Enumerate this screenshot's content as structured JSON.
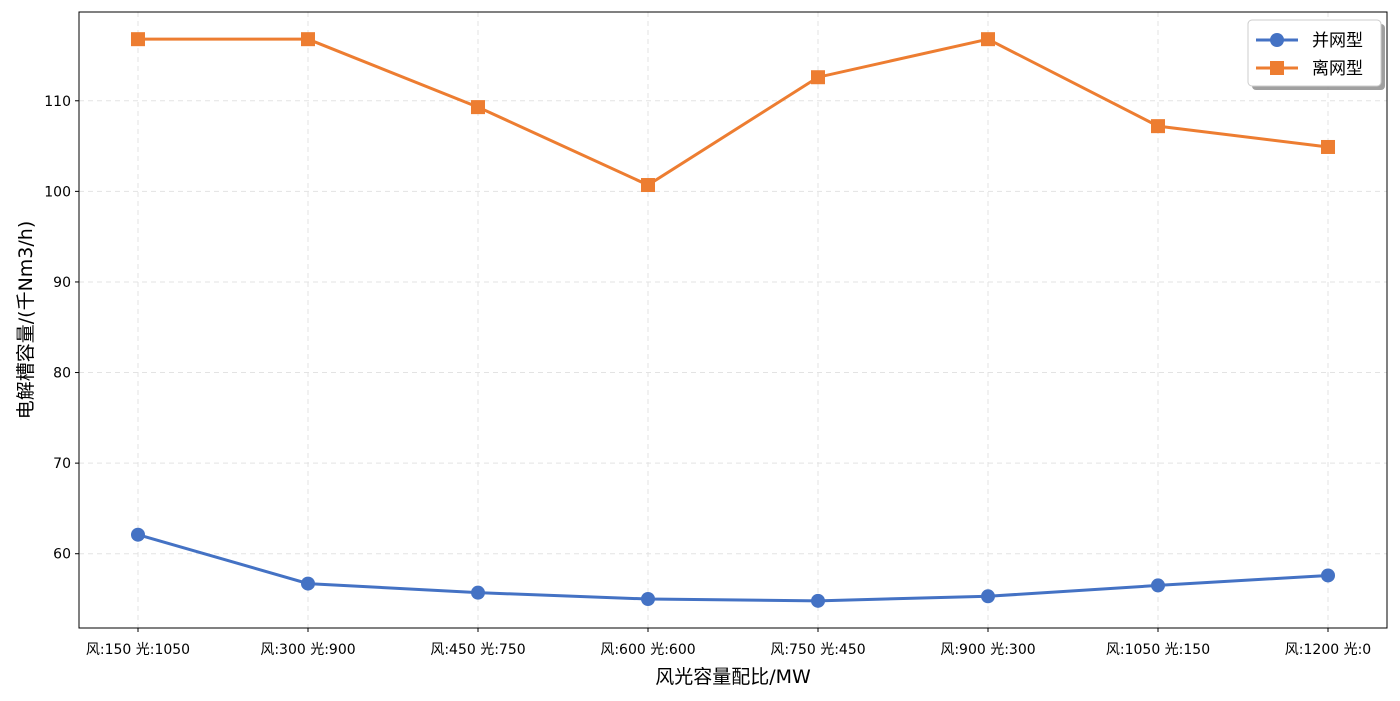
{
  "chart_data": {
    "type": "line",
    "title": "",
    "xlabel": "风光容量配比/MW",
    "ylabel": "电解槽容量/(千Nm3/h)",
    "categories": [
      "风:150 光:1050",
      "风:300 光:900",
      "风:450 光:750",
      "风:600 光:600",
      "风:750 光:450",
      "风:900 光:300",
      "风:1050 光:150",
      "风:1200 光:0"
    ],
    "series": [
      {
        "name": "并网型",
        "color": "#4472C4",
        "marker": "circle",
        "values": [
          62.1,
          56.7,
          55.7,
          55.0,
          54.8,
          55.3,
          56.5,
          57.6
        ]
      },
      {
        "name": "离网型",
        "color": "#ED7D31",
        "marker": "square",
        "values": [
          116.8,
          116.8,
          109.3,
          100.7,
          112.6,
          116.8,
          107.2,
          104.9
        ]
      }
    ],
    "ylim": [
      51.8,
      119.8
    ],
    "yticks": [
      60,
      70,
      80,
      90,
      100,
      110
    ],
    "grid": true,
    "legend": "top-right"
  }
}
